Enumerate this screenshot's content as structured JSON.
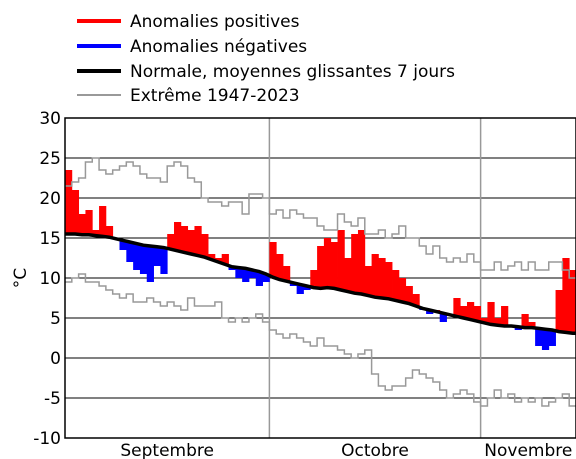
{
  "chart_data": {
    "type": "bar",
    "ylabel": "°C",
    "ylim": [
      -10,
      30
    ],
    "yticks": [
      30,
      25,
      20,
      15,
      10,
      5,
      0,
      -5,
      -10
    ],
    "grid": true,
    "legend_position": "top-left",
    "months": [
      "Septembre",
      "Octobre",
      "Novembre"
    ],
    "colors": {
      "positive": "#ff0000",
      "negative": "#0000ff",
      "normal": "#000000",
      "extreme": "#999999"
    },
    "series": [
      {
        "name": "Anomalies positives",
        "kind": "anomaly-bars",
        "color": "#ff0000"
      },
      {
        "name": "Anomalies négatives",
        "kind": "anomaly-bars",
        "color": "#0000ff"
      },
      {
        "name": "Normale, moyennes glissantes 7 jours",
        "kind": "line",
        "color": "#000000",
        "values": [
          15.5,
          15.5,
          15.4,
          15.4,
          15.3,
          15.2,
          15.1,
          14.9,
          14.7,
          14.5,
          14.3,
          14.1,
          14.0,
          13.9,
          13.8,
          13.6,
          13.4,
          13.2,
          13.0,
          12.8,
          12.6,
          12.3,
          12.0,
          11.7,
          11.4,
          11.3,
          11.2,
          11.0,
          10.8,
          10.5,
          10.1,
          9.8,
          9.6,
          9.4,
          9.2,
          9.0,
          8.8,
          8.7,
          8.8,
          8.7,
          8.5,
          8.3,
          8.1,
          8.0,
          7.8,
          7.6,
          7.5,
          7.4,
          7.2,
          7.0,
          6.8,
          6.5,
          6.2,
          6.0,
          5.8,
          5.6,
          5.4,
          5.2,
          5.0,
          4.8,
          4.6,
          4.4,
          4.2,
          4.1,
          4.0,
          4.0,
          3.9,
          3.8,
          3.8,
          3.7,
          3.6,
          3.5,
          3.3,
          3.2,
          3.1
        ]
      },
      {
        "name": "Extrême 1947-2023",
        "kind": "step-lines",
        "color": "#999999",
        "max": [
          21.5,
          22.0,
          22.5,
          24.5,
          25.0,
          23.5,
          23.0,
          23.5,
          24.0,
          24.5,
          24.0,
          23.0,
          22.5,
          22.5,
          22.0,
          24.0,
          24.5,
          24.0,
          22.5,
          22.0,
          20.0,
          19.5,
          19.5,
          19.0,
          19.5,
          19.5,
          18.0,
          20.5,
          20.5,
          20.0,
          18.0,
          18.5,
          17.5,
          18.5,
          18.0,
          17.5,
          17.5,
          16.5,
          16.0,
          16.0,
          18.0,
          17.0,
          16.5,
          17.5,
          15.5,
          15.5,
          16.0,
          15.0,
          15.5,
          16.5,
          15.0,
          15.0,
          14.0,
          13.0,
          14.0,
          12.5,
          12.0,
          12.5,
          12.0,
          13.0,
          12.0,
          11.0,
          11.0,
          12.0,
          11.0,
          11.5,
          12.0,
          11.0,
          12.0,
          11.0,
          11.0,
          12.0,
          12.0,
          11.0,
          10.0
        ],
        "min": [
          9.5,
          10.0,
          10.5,
          9.5,
          9.5,
          9.0,
          8.5,
          8.0,
          7.5,
          8.0,
          7.0,
          7.0,
          7.5,
          7.0,
          6.5,
          7.0,
          6.5,
          6.0,
          7.5,
          6.5,
          6.5,
          6.5,
          7.0,
          5.0,
          4.5,
          5.0,
          4.5,
          5.0,
          5.5,
          4.5,
          3.5,
          3.0,
          2.5,
          3.0,
          2.5,
          2.0,
          1.5,
          2.5,
          1.5,
          1.5,
          1.0,
          0.5,
          0.0,
          0.5,
          1.0,
          -2.0,
          -3.5,
          -4.0,
          -3.5,
          -3.5,
          -2.5,
          -1.5,
          -2.0,
          -2.5,
          -3.0,
          -4.0,
          -5.0,
          -4.5,
          -4.0,
          -4.5,
          -5.5,
          -6.0,
          -5.0,
          -4.0,
          -5.0,
          -4.5,
          -5.5,
          -5.0,
          -5.5,
          -5.0,
          -6.0,
          -5.5,
          -5.0,
          -4.5,
          -6.0
        ]
      }
    ],
    "observed": [
      23.5,
      21.0,
      18.0,
      18.5,
      16.0,
      19.0,
      16.5,
      15.0,
      13.5,
      12.0,
      11.0,
      10.5,
      9.5,
      11.5,
      10.5,
      15.5,
      17.0,
      16.5,
      16.0,
      16.5,
      15.5,
      13.0,
      12.5,
      13.0,
      11.0,
      10.0,
      9.5,
      10.0,
      9.0,
      9.5,
      14.5,
      13.0,
      11.5,
      9.0,
      8.0,
      8.5,
      11.0,
      14.0,
      15.0,
      14.5,
      16.0,
      12.5,
      15.5,
      16.0,
      11.5,
      13.0,
      12.5,
      12.0,
      11.0,
      10.0,
      9.0,
      8.0,
      6.0,
      5.5,
      6.0,
      4.5,
      5.5,
      7.5,
      6.5,
      7.0,
      6.5,
      5.0,
      7.0,
      5.0,
      6.5,
      4.0,
      3.5,
      5.5,
      4.5,
      1.5,
      1.0,
      1.5,
      8.5,
      12.5,
      11.0
    ]
  }
}
